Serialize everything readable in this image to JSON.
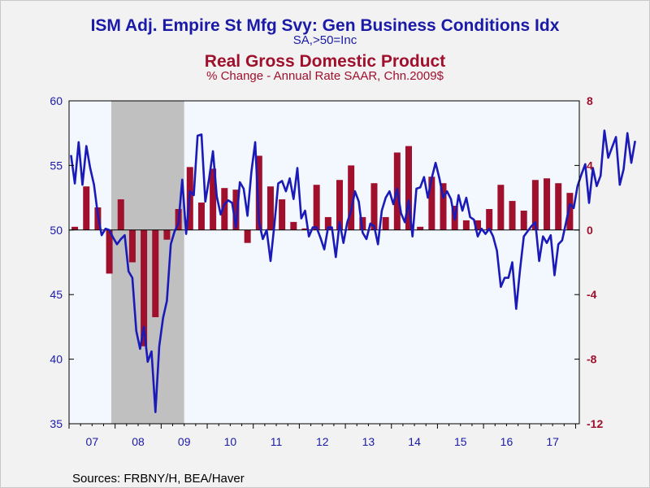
{
  "titles": {
    "line1": "ISM Adj. Empire St Mfg Svy: Gen Business Conditions Idx",
    "line1_sub": "SA,>50=Inc",
    "line2": "Real Gross Domestic Product",
    "line2_sub": "% Change - Annual Rate     SAAR, Chn.2009$"
  },
  "source": "Sources:  FRBNY/H, BEA/Haver",
  "colors": {
    "line": "#1a1ab8",
    "bars": "#a0102c",
    "recession": "#c0c0c0",
    "plot_bg": "#f3f8ff",
    "left_axis_text": "#1a1aa8",
    "right_axis_text": "#a0102c"
  },
  "chart_data": {
    "type": "bar+line",
    "x_ticks": [
      "07",
      "08",
      "09",
      "10",
      "11",
      "12",
      "13",
      "14",
      "15",
      "16",
      "17"
    ],
    "left_axis": {
      "ticks": [
        "35",
        "40",
        "45",
        "50",
        "55",
        "60"
      ],
      "ylim": [
        35,
        60
      ]
    },
    "right_axis": {
      "ticks": [
        "-12",
        "-8",
        "-4",
        "0",
        "4",
        "8"
      ],
      "ylim": [
        -12,
        8
      ]
    },
    "recession": {
      "start": "2007-12",
      "end": "2009-06"
    },
    "series": [
      {
        "name": "Real Gross Domestic Product",
        "type": "bar",
        "axis": "right",
        "quarters": [
          "2007Q1",
          "2007Q2",
          "2007Q3",
          "2007Q4",
          "2008Q1",
          "2008Q2",
          "2008Q3",
          "2008Q4",
          "2009Q1",
          "2009Q2",
          "2009Q3",
          "2009Q4",
          "2010Q1",
          "2010Q2",
          "2010Q3",
          "2010Q4",
          "2011Q1",
          "2011Q2",
          "2011Q3",
          "2011Q4",
          "2012Q1",
          "2012Q2",
          "2012Q3",
          "2012Q4",
          "2013Q1",
          "2013Q2",
          "2013Q3",
          "2013Q4",
          "2014Q1",
          "2014Q2",
          "2014Q3",
          "2014Q4",
          "2015Q1",
          "2015Q2",
          "2015Q3",
          "2015Q4",
          "2016Q1",
          "2016Q2",
          "2016Q3",
          "2016Q4",
          "2017Q1",
          "2017Q2",
          "2017Q3",
          "2017Q4"
        ],
        "values": [
          0.2,
          2.7,
          1.4,
          -2.7,
          1.9,
          -2.0,
          -7.2,
          -5.4,
          -0.6,
          1.3,
          3.9,
          1.7,
          3.8,
          2.6,
          2.5,
          -0.8,
          4.6,
          2.7,
          1.9,
          0.5,
          0.1,
          2.8,
          0.8,
          3.1,
          4.0,
          0.8,
          2.9,
          0.8,
          4.8,
          5.2,
          0.2,
          3.3,
          2.9,
          1.5,
          0.6,
          0.6,
          1.3,
          2.8,
          1.8,
          1.2,
          3.1,
          3.2,
          2.9,
          2.3
        ]
      },
      {
        "name": "ISM Adj. Empire St Mfg Svy: Gen Business Conditions Idx",
        "type": "line",
        "axis": "left",
        "start": "2007-01",
        "values": [
          55.8,
          53.6,
          56.8,
          53.5,
          56.5,
          54.8,
          53.5,
          51.2,
          49.6,
          50.1,
          50.0,
          49.4,
          48.9,
          49.3,
          49.6,
          46.8,
          46.3,
          42.2,
          40.8,
          42.5,
          39.8,
          40.6,
          35.9,
          41.0,
          43.2,
          44.5,
          48.9,
          49.9,
          50.5,
          53.9,
          49.7,
          53.0,
          52.7,
          57.3,
          57.4,
          52.2,
          54.0,
          56.1,
          52.6,
          51.2,
          52.0,
          52.3,
          52.1,
          50.2,
          53.7,
          53.2,
          51.1,
          54.5,
          56.8,
          50.6,
          49.3,
          50.0,
          47.6,
          50.4,
          53.6,
          53.8,
          53.0,
          54.0,
          52.4,
          54.8,
          50.9,
          51.5,
          49.5,
          50.2,
          50.2,
          49.4,
          48.5,
          50.2,
          50.2,
          47.9,
          50.6,
          49.0,
          50.6,
          51.5,
          53.0,
          52.2,
          49.8,
          49.3,
          50.5,
          50.3,
          48.9,
          51.5,
          52.5,
          53.0,
          52.0,
          53.2,
          51.3,
          50.6,
          52.3,
          49.5,
          53.2,
          53.3,
          54.1,
          52.5,
          54.0,
          55.2,
          54.0,
          52.5,
          53.0,
          52.4,
          50.8,
          52.7,
          51.5,
          52.5,
          51.0,
          50.8,
          49.5,
          50.1,
          49.7,
          50.1,
          49.5,
          48.4,
          45.6,
          46.3,
          46.3,
          47.5,
          43.9,
          46.9,
          49.5,
          49.9,
          50.3,
          50.6,
          47.6,
          49.5,
          49.0,
          49.6,
          46.5,
          48.9,
          49.2,
          50.6,
          52.0,
          51.7,
          53.4,
          54.3,
          55.1,
          52.1,
          54.8,
          53.4,
          54.2,
          57.7,
          55.6,
          56.4,
          57.2,
          53.5,
          54.7,
          57.5,
          55.2,
          56.9
        ]
      }
    ]
  }
}
